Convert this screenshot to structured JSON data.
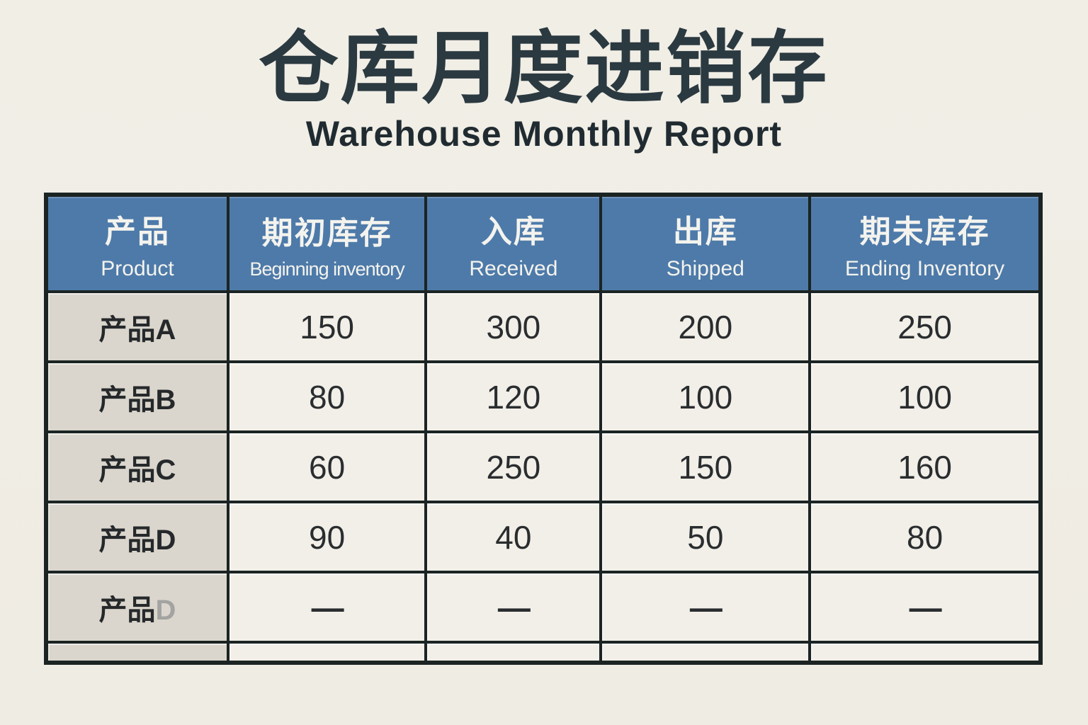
{
  "page": {
    "title": "仓库月度进销存",
    "subtitle": "Warehouse Monthly Report"
  },
  "table": {
    "columns": [
      {
        "zh": "产品",
        "en": "Product",
        "key": "product"
      },
      {
        "zh": "期初库存",
        "en": "Beginning inventory",
        "key": "begin"
      },
      {
        "zh": "入库",
        "en": "Received",
        "key": "received"
      },
      {
        "zh": "出库",
        "en": "Shipped",
        "key": "shipped"
      },
      {
        "zh": "期未库存",
        "en": "Ending Inventory",
        "key": "ending"
      }
    ],
    "rows": [
      {
        "product_prefix": "产品",
        "product_suffix": "A",
        "suffix_muted": false,
        "spacer": false,
        "values": [
          "150",
          "300",
          "200",
          "250"
        ]
      },
      {
        "product_prefix": "产品",
        "product_suffix": "B",
        "suffix_muted": false,
        "spacer": false,
        "values": [
          "80",
          "120",
          "100",
          "100"
        ]
      },
      {
        "product_prefix": "产品",
        "product_suffix": "C",
        "suffix_muted": false,
        "spacer": false,
        "values": [
          "60",
          "250",
          "150",
          "160"
        ]
      },
      {
        "product_prefix": "产品",
        "product_suffix": "D",
        "suffix_muted": false,
        "spacer": false,
        "values": [
          "90",
          "40",
          "50",
          "80"
        ]
      },
      {
        "product_prefix": "产品",
        "product_suffix": "D",
        "suffix_muted": true,
        "spacer": false,
        "values": [
          "—",
          "—",
          "—",
          "—"
        ]
      },
      {
        "product_prefix": "",
        "product_suffix": "",
        "suffix_muted": false,
        "spacer": true,
        "values": [
          "",
          "",
          "",
          ""
        ]
      }
    ]
  },
  "colors": {
    "page_background": "#f0ede5",
    "header_blue": "#4d7aa9",
    "header_text": "#f4f3ee",
    "product_column_gray": "#dad6cd",
    "cell_background": "#f2efe8",
    "border_dark": "#1b2423",
    "title_dark": "#2b3940",
    "muted_gray": "#a3a3a1"
  }
}
